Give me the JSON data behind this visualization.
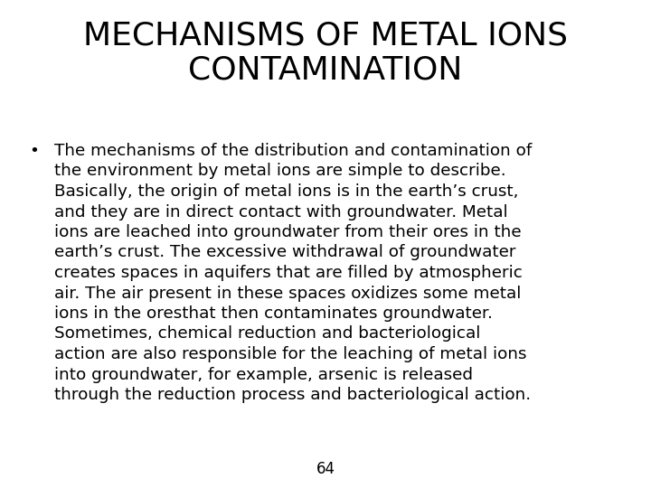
{
  "title_line1": "MECHANISMS OF METAL IONS",
  "title_line2": "CONTAMINATION",
  "bullet_lines": [
    "The mechanisms of the distribution and contamination of",
    "the environment by metal ions are simple to describe.",
    "Basically, the origin of metal ions is in the earth’s crust,",
    "and they are in direct contact with groundwater. Metal",
    "ions are leached into groundwater from their ores in the",
    "earth’s crust. The excessive withdrawal of groundwater",
    "creates spaces in aquifers that are filled by atmospheric",
    "air. The air present in these spaces oxidizes some metal",
    "ions in the oresthat then contaminates groundwater.",
    "Sometimes, chemical reduction and bacteriological",
    "action are also responsible for the leaching of metal ions",
    "into groundwater, for example, arsenic is released",
    "through the reduction process and bacteriological action."
  ],
  "page_number": "64",
  "bg_color": "#ffffff",
  "text_color": "#000000",
  "title_fontsize": 26,
  "body_fontsize": 13.2,
  "page_num_fontsize": 12
}
